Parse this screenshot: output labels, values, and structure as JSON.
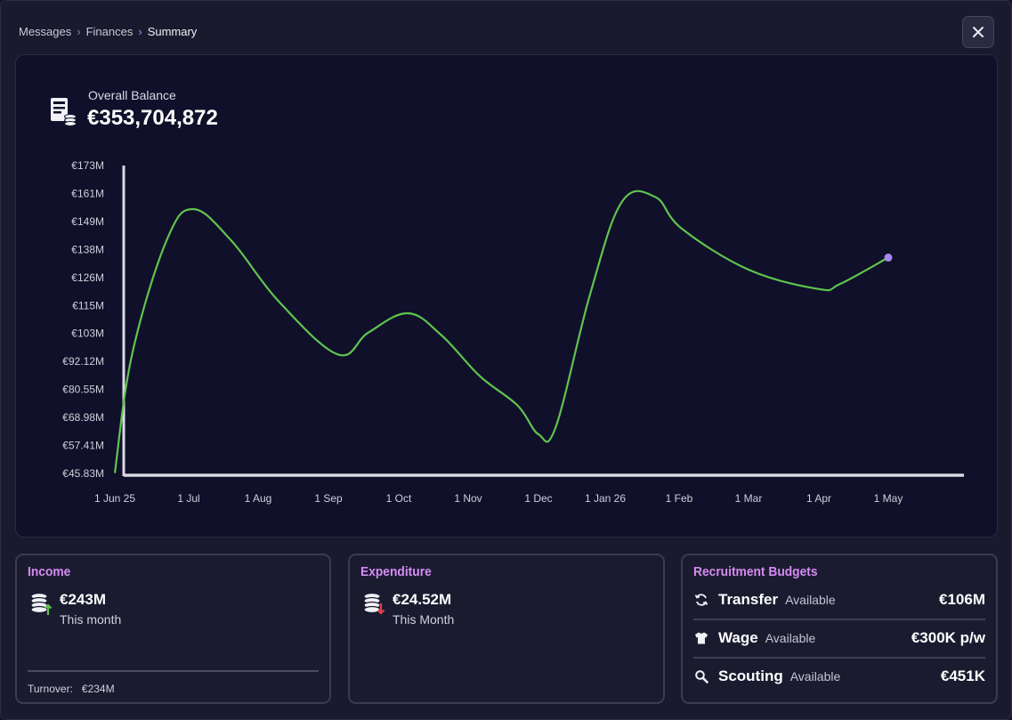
{
  "breadcrumb": {
    "items": [
      "Messages",
      "Finances",
      "Summary"
    ]
  },
  "close_icon": "close-icon",
  "balance": {
    "label": "Overall Balance",
    "value": "€353,704,872",
    "icon": "ledger-coins-icon"
  },
  "chart_data": {
    "type": "line",
    "title": "",
    "xlabel": "",
    "ylabel": "",
    "y_tick_labels": [
      "€173M",
      "€161M",
      "€149M",
      "€138M",
      "€126M",
      "€115M",
      "€103M",
      "€92.12M",
      "€80.55M",
      "€68.98M",
      "€57.41M",
      "€45.83M"
    ],
    "x_tick_labels": [
      "1 Jun 25",
      "1 Jul",
      "1 Aug",
      "1 Sep",
      "1 Oct",
      "1 Nov",
      "1 Dec",
      "1 Jan 26",
      "1 Feb",
      "1 Mar",
      "1 Apr",
      "1 May"
    ],
    "ylim": [
      45.83,
      173
    ],
    "y_unit": "€M",
    "grid": false,
    "line_color": "#5fc44f",
    "marker_color": "#a985f2",
    "series": [
      {
        "x": [
          "1 Jun 25",
          "8 Jun 25",
          "22 Jun 25",
          "3 Jul 25",
          "20 Jul 25",
          "10 Aug 25",
          "5 Sep 25",
          "18 Sep 25",
          "5 Oct 25",
          "20 Oct 25",
          "6 Nov 25",
          "22 Nov 25",
          "1 Dec 25",
          "9 Dec 25",
          "25 Dec 25",
          "8 Jan 26",
          "22 Jan 26",
          "2 Feb 26",
          "1 Mar 26",
          "1 Apr 26",
          "10 Apr 26",
          "1 May 26"
        ],
        "values": [
          46,
          95,
          142,
          155,
          142,
          117,
          95,
          104,
          112,
          103,
          86,
          74,
          62,
          65,
          120,
          158,
          160,
          147,
          130,
          122,
          124,
          135
        ]
      }
    ]
  },
  "income": {
    "title": "Income",
    "amount": "€243M",
    "period": "This month",
    "turnover_label": "Turnover:",
    "turnover_value": "€234M",
    "icon": "coins-up-icon"
  },
  "expenditure": {
    "title": "Expenditure",
    "amount": "€24.52M",
    "period": "This Month",
    "icon": "coins-down-icon"
  },
  "budgets": {
    "title": "Recruitment Budgets",
    "items": [
      {
        "name": "Transfer",
        "available": "Available",
        "value": "€106M",
        "icon": "transfer-cycle-icon"
      },
      {
        "name": "Wage",
        "available": "Available",
        "value": "€300K p/w",
        "icon": "shirt-icon"
      },
      {
        "name": "Scouting",
        "available": "Available",
        "value": "€451K",
        "icon": "magnifier-icon"
      }
    ]
  }
}
